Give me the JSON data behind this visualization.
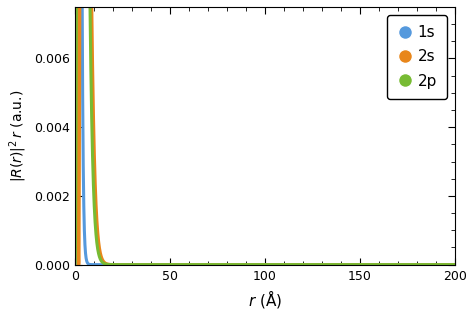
{
  "title": "",
  "xlabel": "$r$ (Å)",
  "ylabel": "$|R(r)|^2\\,r$ (a.u.)",
  "xlim": [
    0,
    200
  ],
  "ylim": [
    -5e-05,
    0.0075
  ],
  "ylim_display": [
    0,
    0.0075
  ],
  "yticks": [
    0.0,
    0.002,
    0.004,
    0.006
  ],
  "xticks": [
    0,
    50,
    100,
    150,
    200
  ],
  "color_1s": "#5599DD",
  "color_2s": "#E8861A",
  "color_2p": "#77BB33",
  "legend_labels": [
    "1s",
    "2s",
    "2p"
  ],
  "background_color": "#FFFFFF",
  "line_width": 2.2,
  "a0": 1.0,
  "r_max": 200,
  "n_points": 4000
}
